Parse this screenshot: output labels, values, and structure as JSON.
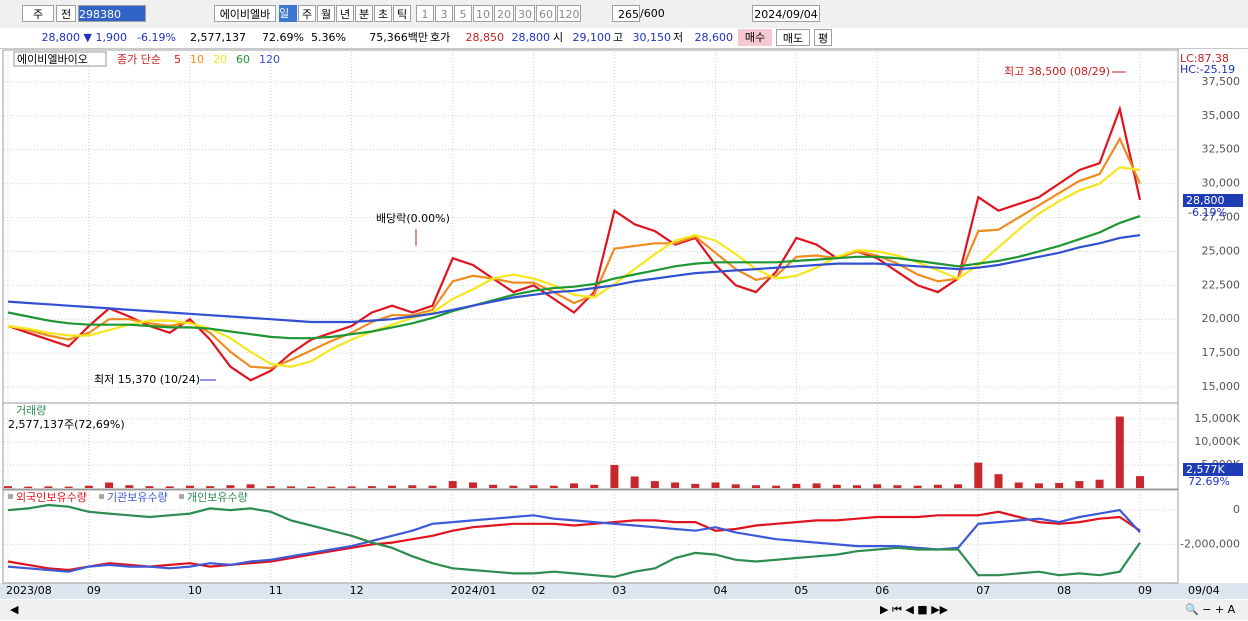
{
  "toolbar": {
    "market": "주",
    "prev": "전",
    "code": "298380",
    "name": "에이비엘바",
    "periods": [
      "일",
      "주",
      "월",
      "년",
      "분",
      "초",
      "틱"
    ],
    "intervals": [
      "1",
      "3",
      "5",
      "10",
      "20",
      "30",
      "60",
      "120"
    ],
    "count": "265",
    "max": "/600",
    "date": "2024/09/04"
  },
  "quote": {
    "price": "28,800 ▼",
    "change": "1,900",
    "rate": "-6.19%",
    "volume": "2,577,137",
    "volume_rate": "72.69%",
    "turnover": "5.36%",
    "amount": "75,366백만",
    "ask_label": "호가",
    "ask": "28,850",
    "bid": "28,800",
    "open_label": "시",
    "open": "29,100",
    "high_label": "고",
    "high": "30,150",
    "low_label": "저",
    "low": "28,600",
    "buy": "매수",
    "sell": "매도",
    "avg": "평"
  },
  "chart_data": [
    {
      "type": "line",
      "title": "에이비엘바이오",
      "legend_prefix": "종가 단순",
      "grid": true,
      "categories": [
        "2023/08",
        null,
        null,
        null,
        "09",
        null,
        null,
        null,
        null,
        "10",
        null,
        null,
        null,
        "11",
        null,
        null,
        null,
        "12",
        null,
        null,
        null,
        null,
        "2024/01",
        null,
        null,
        null,
        "02",
        null,
        null,
        null,
        "03",
        null,
        null,
        null,
        null,
        "04",
        null,
        null,
        null,
        "05",
        null,
        null,
        null,
        "06",
        null,
        null,
        null,
        null,
        "07",
        null,
        null,
        null,
        "08",
        null,
        null,
        null,
        "09"
      ],
      "x_end_label": "09/04",
      "series": [
        {
          "name": "5",
          "color": "#e0141e",
          "values": [
            19500,
            19000,
            18500,
            18000,
            19500,
            20800,
            20200,
            19500,
            19000,
            20000,
            18500,
            16500,
            15500,
            16200,
            17500,
            18500,
            19000,
            19500,
            20500,
            21000,
            20500,
            21000,
            24500,
            24000,
            23000,
            22000,
            22500,
            21500,
            20500,
            22000,
            28000,
            27000,
            26500,
            25500,
            26000,
            24000,
            22500,
            22000,
            23500,
            26000,
            25500,
            24500,
            25000,
            24500,
            23500,
            22500,
            22000,
            23000,
            29000,
            28000,
            28500,
            29000,
            30000,
            31000,
            31500,
            35500,
            28800
          ]
        },
        {
          "name": "10",
          "color": "#f08c1e",
          "values": [
            19500,
            19200,
            18800,
            18500,
            19000,
            20000,
            20000,
            19700,
            19500,
            19800,
            19000,
            17600,
            16500,
            16400,
            17000,
            17700,
            18400,
            19000,
            19800,
            20300,
            20300,
            20700,
            22800,
            23200,
            23000,
            22700,
            22700,
            22000,
            21200,
            21800,
            25200,
            25400,
            25600,
            25600,
            26100,
            24900,
            23700,
            22900,
            23200,
            24600,
            24700,
            24500,
            25000,
            24700,
            24100,
            23300,
            22800,
            23000,
            26500,
            26600,
            27500,
            28400,
            29300,
            30200,
            30700,
            33300,
            30000
          ]
        },
        {
          "name": "20",
          "color": "#f5e61e",
          "values": [
            19500,
            19300,
            19000,
            18800,
            18800,
            19200,
            19600,
            19900,
            19900,
            19700,
            19300,
            18600,
            17600,
            16700,
            16500,
            16900,
            17800,
            18500,
            19100,
            19600,
            20100,
            20500,
            21500,
            22200,
            23000,
            23300,
            23000,
            22500,
            21800,
            21600,
            22600,
            23700,
            24800,
            25800,
            26200,
            25800,
            24800,
            23700,
            23000,
            23200,
            23800,
            24600,
            25100,
            25000,
            24700,
            24200,
            23600,
            23000,
            24000,
            25300,
            26600,
            27800,
            28700,
            29500,
            30000,
            31200,
            31000
          ]
        },
        {
          "name": "60",
          "color": "#1e9632",
          "values": [
            20500,
            20200,
            19900,
            19700,
            19600,
            19600,
            19600,
            19500,
            19400,
            19400,
            19300,
            19100,
            18900,
            18700,
            18600,
            18600,
            18700,
            18900,
            19100,
            19400,
            19700,
            20100,
            20600,
            21000,
            21400,
            21800,
            22100,
            22300,
            22400,
            22600,
            23000,
            23300,
            23600,
            23900,
            24100,
            24200,
            24200,
            24200,
            24200,
            24300,
            24400,
            24500,
            24600,
            24600,
            24500,
            24300,
            24100,
            23900,
            24100,
            24300,
            24600,
            25000,
            25400,
            25900,
            26400,
            27100,
            27600
          ]
        },
        {
          "name": "120",
          "color": "#3250d2",
          "values": [
            21300,
            21200,
            21100,
            21000,
            20900,
            20800,
            20700,
            20600,
            20500,
            20400,
            20300,
            20200,
            20100,
            20000,
            19900,
            19800,
            19800,
            19800,
            19900,
            20000,
            20200,
            20400,
            20700,
            21000,
            21300,
            21600,
            21800,
            22000,
            22100,
            22300,
            22500,
            22800,
            23000,
            23200,
            23400,
            23500,
            23600,
            23700,
            23800,
            23900,
            24000,
            24100,
            24100,
            24100,
            24000,
            23900,
            23800,
            23700,
            23800,
            24000,
            24300,
            24600,
            24900,
            25300,
            25600,
            26000,
            26200
          ]
        }
      ],
      "ylim": [
        13900,
        39700
      ],
      "yticks": [
        {
          "value": 15000,
          "label": "15,000"
        },
        {
          "value": 17500,
          "label": "17,500"
        },
        {
          "value": 20000,
          "label": "20,000"
        },
        {
          "value": 22500,
          "label": "22,500"
        },
        {
          "value": 25000,
          "label": "25,000"
        },
        {
          "value": 27500,
          "label": "27,500"
        },
        {
          "value": 30000,
          "label": "30,000"
        },
        {
          "value": 32500,
          "label": "32,500"
        },
        {
          "value": 35000,
          "label": "35,000"
        },
        {
          "value": 37500,
          "label": "37,500"
        }
      ],
      "high_note": "최고 38,500 (08/29)",
      "low_note": "최저 15,370 (10/24)",
      "dividend_note": "배당락(0.00%)",
      "indicators": [
        "LC:87.38",
        "HC:-25.19"
      ],
      "last_label": "28,800",
      "last_rate": "-6.19%"
    },
    {
      "type": "bar",
      "title": "거래량",
      "subtitle": "2,577,137주(72,69%)",
      "color": "#c8282d",
      "values": [
        400,
        300,
        350,
        300,
        500,
        1200,
        600,
        400,
        350,
        500,
        400,
        600,
        800,
        400,
        350,
        300,
        300,
        350,
        400,
        500,
        600,
        500,
        1500,
        1200,
        700,
        500,
        600,
        500,
        1000,
        700,
        5000,
        2500,
        1500,
        1200,
        900,
        1200,
        800,
        600,
        500,
        900,
        1000,
        700,
        600,
        800,
        600,
        500,
        700,
        800,
        5500,
        3000,
        1200,
        1000,
        1100,
        1500,
        1800,
        15500,
        2577
      ],
      "ylim": [
        0,
        18000
      ],
      "yticks": [
        {
          "value": 15000,
          "label": "15,000K"
        },
        {
          "value": 10000,
          "label": "10,000K"
        },
        {
          "value": 5000,
          "label": "5,000K"
        }
      ],
      "last_label": "2,577K",
      "last_rate": "72.69%"
    },
    {
      "type": "line",
      "series": [
        {
          "name": "외국인보유수량",
          "color": "#e0141e",
          "values": [
            -3000000,
            -3200000,
            -3400000,
            -3500000,
            -3300000,
            -3100000,
            -3200000,
            -3300000,
            -3200000,
            -3100000,
            -3300000,
            -3200000,
            -3100000,
            -3000000,
            -2800000,
            -2600000,
            -2400000,
            -2200000,
            -2000000,
            -1900000,
            -1700000,
            -1500000,
            -1200000,
            -1000000,
            -900000,
            -800000,
            -800000,
            -800000,
            -900000,
            -800000,
            -700000,
            -600000,
            -600000,
            -700000,
            -700000,
            -1200000,
            -1100000,
            -900000,
            -800000,
            -700000,
            -600000,
            -600000,
            -500000,
            -400000,
            -400000,
            -400000,
            -300000,
            -300000,
            -300000,
            -100000,
            -400000,
            -700000,
            -800000,
            -700000,
            -500000,
            -400000,
            -1200000
          ]
        },
        {
          "name": "기관보유수량",
          "color": "#3c5ad7",
          "values": [
            -3300000,
            -3400000,
            -3500000,
            -3600000,
            -3300000,
            -3200000,
            -3300000,
            -3300000,
            -3400000,
            -3300000,
            -3100000,
            -3200000,
            -3000000,
            -2900000,
            -2700000,
            -2500000,
            -2300000,
            -2100000,
            -1800000,
            -1500000,
            -1200000,
            -800000,
            -700000,
            -600000,
            -500000,
            -400000,
            -300000,
            -500000,
            -600000,
            -700000,
            -800000,
            -900000,
            -1000000,
            -1100000,
            -1200000,
            -1000000,
            -1300000,
            -1500000,
            -1700000,
            -1800000,
            -1900000,
            -2000000,
            -2100000,
            -2100000,
            -2100000,
            -2200000,
            -2300000,
            -2200000,
            -800000,
            -700000,
            -600000,
            -500000,
            -700000,
            -400000,
            -200000,
            0,
            -1300000
          ]
        },
        {
          "name": "개인보유수량",
          "color": "#2d8c50",
          "values": [
            0,
            100000,
            300000,
            200000,
            -100000,
            -200000,
            -300000,
            -400000,
            -300000,
            -200000,
            100000,
            0,
            100000,
            -100000,
            -600000,
            -900000,
            -1200000,
            -1500000,
            -1900000,
            -2200000,
            -2700000,
            -3100000,
            -3400000,
            -3500000,
            -3600000,
            -3700000,
            -3700000,
            -3600000,
            -3700000,
            -3800000,
            -3900000,
            -3600000,
            -3400000,
            -2800000,
            -2500000,
            -2600000,
            -2900000,
            -3000000,
            -2900000,
            -2800000,
            -2700000,
            -2600000,
            -2400000,
            -2300000,
            -2200000,
            -2300000,
            -2300000,
            -2300000,
            -3800000,
            -3800000,
            -3700000,
            -3600000,
            -3800000,
            -3700000,
            -3800000,
            -3600000,
            -1900000
          ]
        }
      ],
      "ylim": [
        -4200000,
        1060000
      ],
      "yticks": [
        0,
        {
          "value": -2000000,
          "label": "-2,000,000"
        }
      ]
    }
  ]
}
